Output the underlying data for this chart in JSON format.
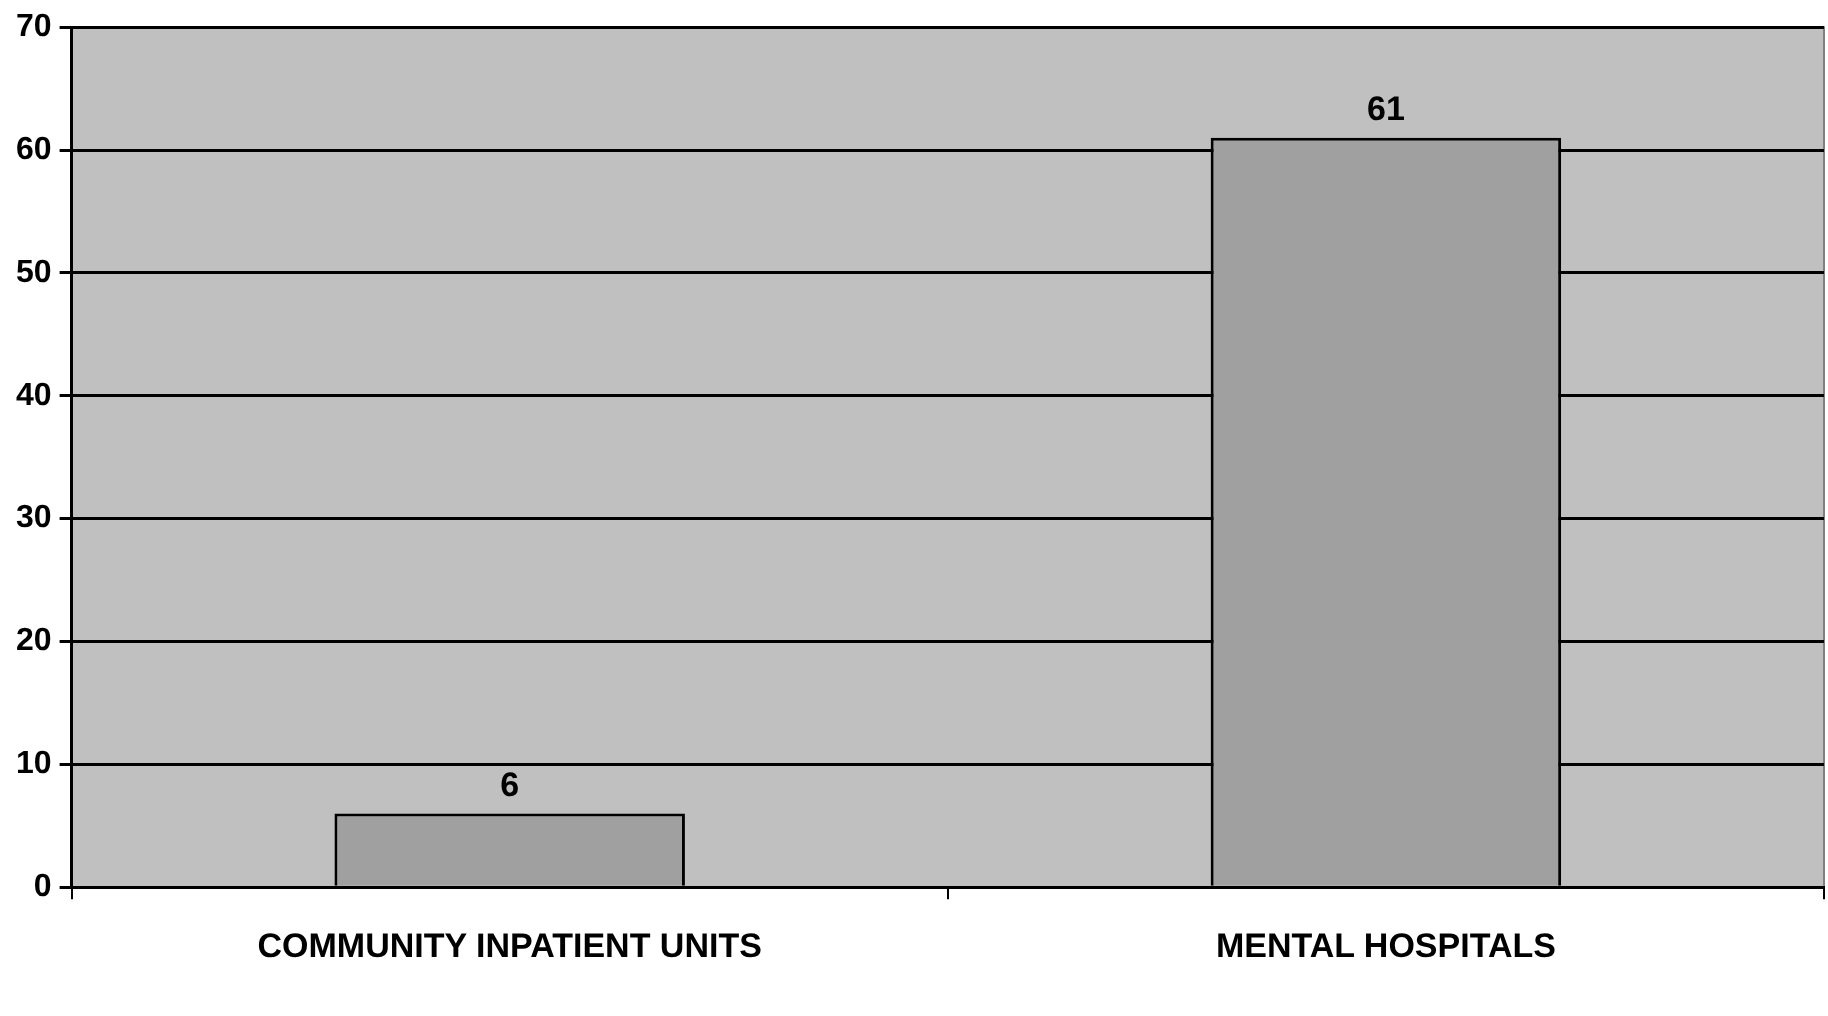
{
  "chart_data": {
    "type": "bar",
    "categories": [
      "COMMUNITY INPATIENT UNITS",
      "MENTAL HOSPITALS"
    ],
    "values": [
      6,
      61
    ],
    "color": "#a0a0a0",
    "ylim": [
      0,
      70
    ],
    "yticks": [
      0,
      10,
      20,
      30,
      40,
      50,
      60,
      70
    ],
    "grid": "y",
    "data_labels": true
  }
}
